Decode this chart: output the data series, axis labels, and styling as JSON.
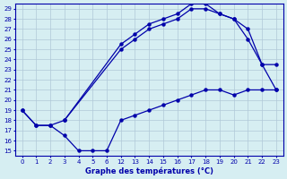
{
  "title": "Graphe des températures (°C)",
  "bg_color": "#d6eef2",
  "line_color": "#0000aa",
  "grid_color": "#b0c8d8",
  "yticks": [
    15,
    16,
    17,
    18,
    19,
    20,
    21,
    22,
    23,
    24,
    25,
    26,
    27,
    28,
    29
  ],
  "hour_labels": [
    0,
    1,
    2,
    3,
    4,
    5,
    6,
    12,
    13,
    14,
    15,
    16,
    17,
    18,
    19,
    20,
    21,
    22,
    23
  ],
  "hour_positions": [
    0,
    1,
    2,
    3,
    4,
    5,
    6,
    7,
    8,
    9,
    10,
    11,
    12,
    13,
    14,
    15,
    16,
    17,
    18
  ],
  "line1_hours": [
    0,
    1,
    2,
    3,
    4,
    5,
    6,
    12,
    13,
    14,
    15,
    16,
    17,
    18,
    19,
    20,
    21,
    22,
    23
  ],
  "line1_y": [
    19,
    17.5,
    17.5,
    16.5,
    15,
    15,
    15,
    18,
    18.5,
    19,
    19.5,
    20,
    20.5,
    21,
    21,
    20.5,
    21,
    21,
    21
  ],
  "line2_hours": [
    0,
    1,
    2,
    3,
    12,
    13,
    14,
    15,
    16,
    17,
    18,
    19,
    20,
    21,
    22,
    23
  ],
  "line2_y": [
    19,
    17.5,
    17.5,
    18,
    25,
    26,
    27,
    27.5,
    28,
    29,
    29,
    28.5,
    28,
    27,
    23.5,
    23.5
  ],
  "line3_hours": [
    3,
    12,
    13,
    14,
    15,
    16,
    17,
    18,
    19,
    20,
    21,
    22,
    23
  ],
  "line3_y": [
    18,
    25.5,
    26.5,
    27.5,
    28,
    28.5,
    29.5,
    29.5,
    28.5,
    28,
    26,
    23.5,
    21
  ]
}
